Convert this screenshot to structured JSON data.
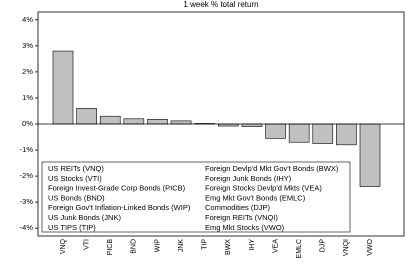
{
  "chart_data": {
    "type": "bar",
    "title": "1 week % total return",
    "categories": [
      "VNQ",
      "VTI",
      "PICB",
      "BND",
      "WIP",
      "JNK",
      "TIP",
      "BWX",
      "IHY",
      "VEA",
      "EMLC",
      "DJP",
      "VNQI",
      "VWO"
    ],
    "values": [
      2.8,
      0.6,
      0.3,
      0.2,
      0.18,
      0.12,
      0.02,
      -0.08,
      -0.1,
      -0.55,
      -0.7,
      -0.75,
      -0.8,
      -2.4
    ],
    "color": "#c0c0c0",
    "ylim": [
      -4.3,
      4.3
    ],
    "yticks": [
      {
        "value": 4,
        "label": "4%"
      },
      {
        "value": 3,
        "label": "3%"
      },
      {
        "value": 2,
        "label": "2%"
      },
      {
        "value": 1,
        "label": "1%"
      },
      {
        "value": 0,
        "label": "0%"
      },
      {
        "value": -1,
        "label": "-1%"
      },
      {
        "value": -2,
        "label": "-2%"
      },
      {
        "value": -3,
        "label": "-3%"
      },
      {
        "value": -4,
        "label": "-4%"
      }
    ],
    "legend_entries": [
      "US REITs (VNQ)",
      "US Stocks (VTI)",
      "Foreign Invest-Grade Corp Bonds (PICB)",
      "US Bonds (BND)",
      "Foreign Gov't Inflation-Linked Bonds (WIP)",
      "US Junk Bonds (JNK)",
      "US TIPS (TIP)",
      "Foreign Devlp'd Mkt Gov't Bonds (BWX)",
      "Foreign Junk Bonds (IHY)",
      "Foreign Stocks Devlp'd Mkts (VEA)",
      "Emg Mkt Gov't Bonds (EMLC)",
      "Commodities (DJP)",
      "Foreign REITs (VNQI)",
      "Emg Mkt Stocks (VWO)"
    ]
  }
}
